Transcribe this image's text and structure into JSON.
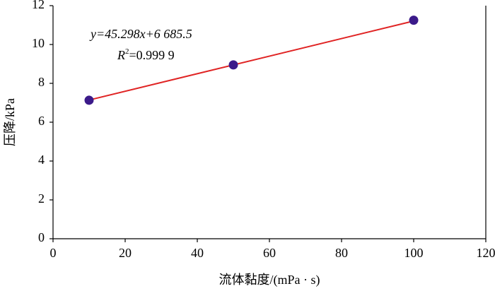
{
  "chart_data": {
    "type": "scatter",
    "x_label": "流体黏度/(mPa · s)",
    "y_label": "压降/kPa",
    "x": [
      10,
      50,
      100
    ],
    "series": [
      {
        "color": "#3b1a8a",
        "values": [
          7.13,
          8.95,
          11.25
        ]
      }
    ],
    "trendline": {
      "x": [
        10,
        100
      ],
      "values": [
        7.14,
        11.21
      ],
      "color": "#e02424"
    },
    "equation": "y=45.298x+6 685.5",
    "r2_symbol": "R",
    "r2_power": "2",
    "r2_value": "=0.999 9",
    "xlim": [
      0,
      120
    ],
    "xticks": [
      0,
      20,
      40,
      60,
      80,
      100,
      120
    ],
    "ylim": [
      0,
      12
    ],
    "yticks": [
      0,
      2,
      4,
      6,
      8,
      10,
      12
    ]
  }
}
